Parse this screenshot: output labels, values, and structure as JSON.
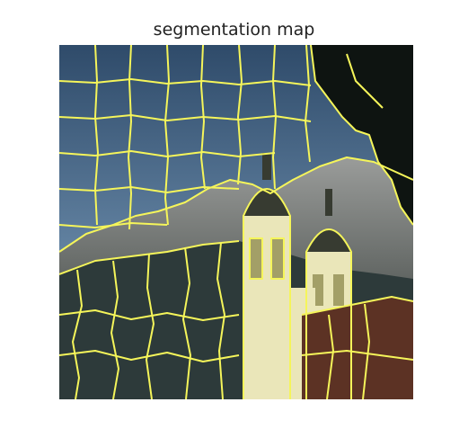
{
  "title": "segmentation map",
  "colors": {
    "sky_top": "#2f4b6a",
    "sky_mid": "#5f7f9e",
    "sky_low": "#8aa6bf",
    "mountain": "#9a9c9a",
    "mountain_dark": "#555a57",
    "forest": "#2d3a3a",
    "tree_dark": "#0e1411",
    "church": "#eae6b9",
    "church_shadow": "#a39f67",
    "tower_dome": "#373b31",
    "roof": "#5c3224",
    "boundary": "#f5f55a"
  }
}
